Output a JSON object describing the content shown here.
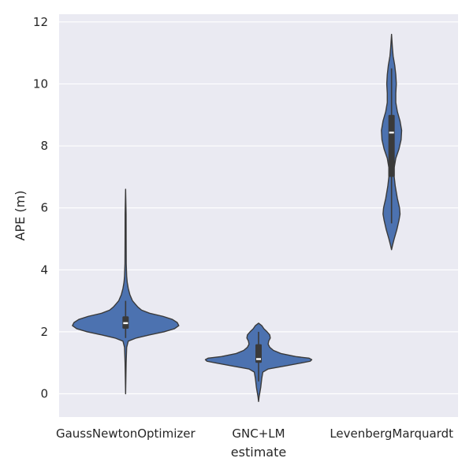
{
  "chart_data": {
    "type": "violin",
    "xlabel": "estimate",
    "ylabel": "APE (m)",
    "categories": [
      "GaussNewtonOptimizer",
      "GNC+LM",
      "LevenbergMarquardt"
    ],
    "ylim": [
      -0.75,
      12.25
    ],
    "yticks": [
      0,
      2,
      4,
      6,
      8,
      10,
      12
    ],
    "grid": true,
    "colors": {
      "background": "#eaeaf2",
      "grid": "#ffffff",
      "violin_fill": "#4c72b0",
      "violin_edge": "#3a3a3a",
      "box": "#3a3a3a",
      "median": "#ffffff"
    },
    "violins": [
      {
        "category": "GaussNewtonOptimizer",
        "box": {
          "whisker_low": 1.8,
          "q1": 2.1,
          "median": 2.28,
          "q3": 2.5,
          "whisker_high": 3.0
        },
        "density_profile": [
          [
            0.0,
            0.0
          ],
          [
            0.5,
            0.005
          ],
          [
            1.0,
            0.01
          ],
          [
            1.5,
            0.02
          ],
          [
            1.7,
            0.05
          ],
          [
            1.8,
            0.2
          ],
          [
            1.9,
            0.45
          ],
          [
            2.0,
            0.72
          ],
          [
            2.1,
            0.92
          ],
          [
            2.2,
            1.0
          ],
          [
            2.3,
            0.97
          ],
          [
            2.4,
            0.88
          ],
          [
            2.5,
            0.7
          ],
          [
            2.6,
            0.45
          ],
          [
            2.7,
            0.3
          ],
          [
            2.8,
            0.23
          ],
          [
            2.9,
            0.18
          ],
          [
            3.0,
            0.13
          ],
          [
            3.2,
            0.08
          ],
          [
            3.4,
            0.05
          ],
          [
            3.6,
            0.03
          ],
          [
            3.8,
            0.02
          ],
          [
            4.2,
            0.012
          ],
          [
            5.0,
            0.01
          ],
          [
            5.8,
            0.009
          ],
          [
            6.6,
            0.0
          ]
        ]
      },
      {
        "category": "GNC+LM",
        "box": {
          "whisker_low": 0.4,
          "q1": 1.0,
          "median": 1.12,
          "q3": 1.6,
          "whisker_high": 2.0
        },
        "density_profile": [
          [
            -0.25,
            0.0
          ],
          [
            -0.1,
            0.01
          ],
          [
            0.2,
            0.04
          ],
          [
            0.5,
            0.06
          ],
          [
            0.7,
            0.08
          ],
          [
            0.8,
            0.18
          ],
          [
            0.9,
            0.5
          ],
          [
            1.0,
            0.82
          ],
          [
            1.05,
            0.97
          ],
          [
            1.1,
            1.0
          ],
          [
            1.15,
            0.95
          ],
          [
            1.2,
            0.7
          ],
          [
            1.3,
            0.42
          ],
          [
            1.4,
            0.28
          ],
          [
            1.5,
            0.21
          ],
          [
            1.6,
            0.18
          ],
          [
            1.7,
            0.19
          ],
          [
            1.8,
            0.22
          ],
          [
            1.9,
            0.21
          ],
          [
            2.0,
            0.16
          ],
          [
            2.1,
            0.1
          ],
          [
            2.2,
            0.06
          ],
          [
            2.28,
            0.0
          ]
        ]
      },
      {
        "category": "LevenbergMarquardt",
        "box": {
          "whisker_low": 5.5,
          "q1": 7.0,
          "median": 8.43,
          "q3": 9.0,
          "whisker_high": 10.5
        },
        "density_profile": [
          [
            4.65,
            0.0
          ],
          [
            4.8,
            0.02
          ],
          [
            5.0,
            0.05
          ],
          [
            5.3,
            0.1
          ],
          [
            5.6,
            0.14
          ],
          [
            5.8,
            0.16
          ],
          [
            6.0,
            0.15
          ],
          [
            6.3,
            0.11
          ],
          [
            6.7,
            0.07
          ],
          [
            7.0,
            0.05
          ],
          [
            7.3,
            0.05
          ],
          [
            7.6,
            0.08
          ],
          [
            7.9,
            0.14
          ],
          [
            8.2,
            0.18
          ],
          [
            8.5,
            0.19
          ],
          [
            8.8,
            0.16
          ],
          [
            9.1,
            0.11
          ],
          [
            9.4,
            0.08
          ],
          [
            9.7,
            0.08
          ],
          [
            10.0,
            0.09
          ],
          [
            10.3,
            0.08
          ],
          [
            10.6,
            0.06
          ],
          [
            10.9,
            0.03
          ],
          [
            11.2,
            0.015
          ],
          [
            11.6,
            0.0
          ]
        ]
      }
    ]
  }
}
